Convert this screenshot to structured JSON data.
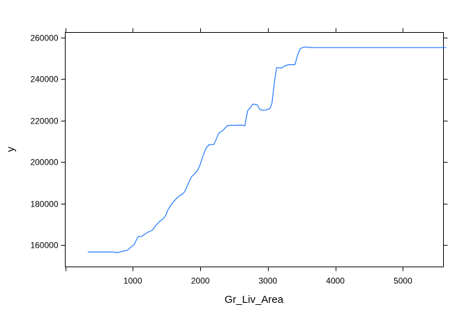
{
  "chart_data": {
    "type": "line",
    "title": "",
    "xlabel": "Gr_Liv_Area",
    "ylabel": "y",
    "xlim": [
      0,
      5600
    ],
    "ylim": [
      149500,
      262500
    ],
    "x_ticks": [
      1000,
      2000,
      3000,
      4000,
      5000
    ],
    "x_tick_marks_top": [
      0,
      1000,
      2000,
      3000,
      4000,
      5000,
      6000
    ],
    "x_tick_marks_bottom": [
      0,
      1000,
      2000,
      3000,
      4000,
      5000,
      6000
    ],
    "y_ticks": [
      160000,
      180000,
      200000,
      220000,
      240000,
      260000
    ],
    "y_tick_labels": [
      "160000",
      "180000",
      "200000",
      "220000",
      "240000",
      "260000"
    ],
    "grid": false,
    "line_color": "#1f78ff",
    "series": [
      {
        "x": [
          334,
          420,
          500,
          600,
          700,
          780,
          870,
          920,
          980,
          1020,
          1080,
          1130,
          1180,
          1240,
          1290,
          1340,
          1400,
          1450,
          1490,
          1520,
          1580,
          1650,
          1700,
          1730,
          1770,
          1820,
          1870,
          1920,
          1960,
          2000,
          2040,
          2090,
          2130,
          2200,
          2240,
          2270,
          2340,
          2400,
          2450,
          2500,
          2560,
          2620,
          2660,
          2700,
          2740,
          2780,
          2840,
          2880,
          2920,
          2970,
          3030,
          3060,
          3100,
          3130,
          3160,
          3200,
          3250,
          3300,
          3350,
          3400,
          3450,
          3480,
          3520,
          3560,
          3600,
          3630,
          3660,
          3700,
          4000,
          5000,
          5642
        ],
        "y": [
          156700,
          156700,
          156700,
          156700,
          156700,
          156400,
          157200,
          157500,
          159200,
          160300,
          164100,
          164200,
          165300,
          166500,
          167200,
          169500,
          171500,
          172700,
          174400,
          177000,
          180000,
          182600,
          184000,
          184400,
          185800,
          189600,
          193000,
          194500,
          196000,
          199000,
          203000,
          207000,
          208400,
          208500,
          211300,
          213800,
          215500,
          217600,
          217800,
          217700,
          217800,
          217800,
          217500,
          224700,
          226300,
          228000,
          227700,
          225400,
          225000,
          225100,
          225800,
          228200,
          239200,
          245400,
          245500,
          245300,
          246400,
          246900,
          247000,
          247000,
          252500,
          254700,
          255300,
          255500,
          255300,
          255300,
          255200,
          255200,
          255200,
          255200,
          255200
        ]
      }
    ]
  }
}
